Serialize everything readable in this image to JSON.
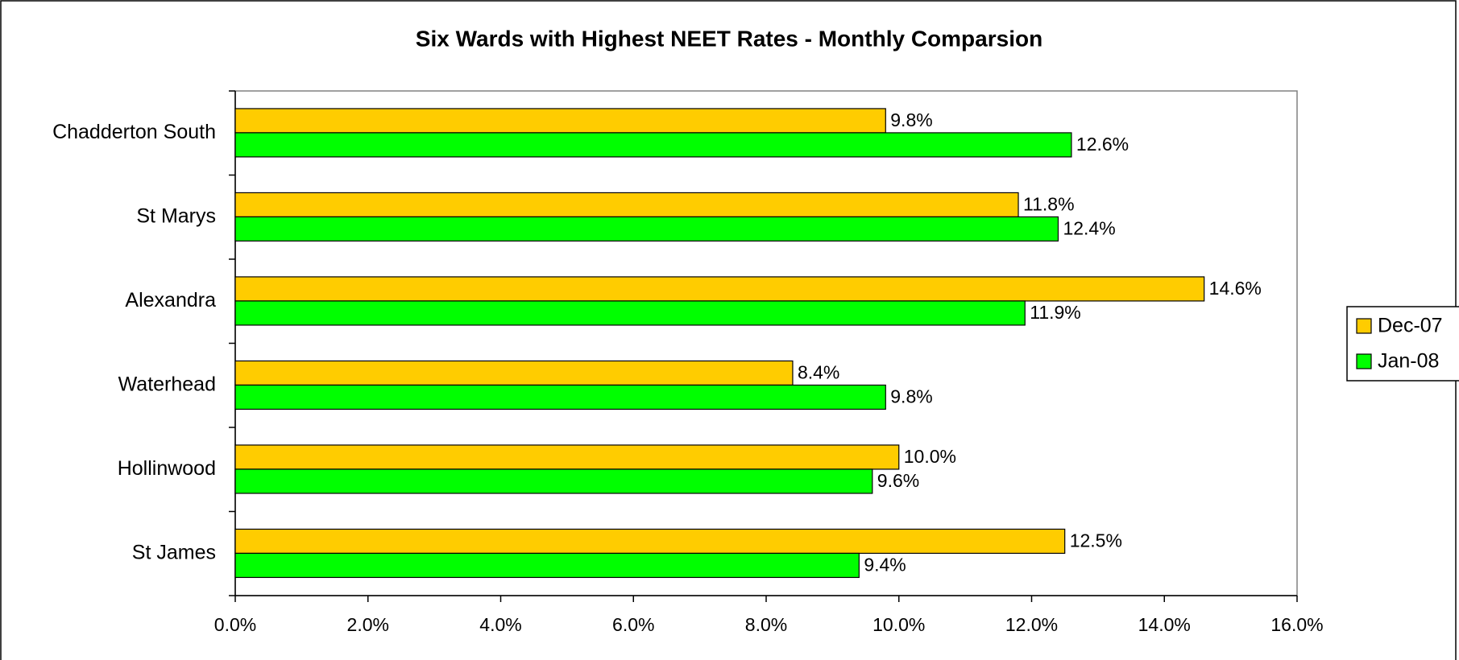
{
  "chart_data": {
    "type": "bar",
    "orientation": "horizontal",
    "title": "Six Wards with Highest NEET Rates - Monthly Comparsion",
    "categories": [
      "Chadderton South",
      "St Marys",
      "Alexandra",
      "Waterhead",
      "Hollinwood",
      "St James"
    ],
    "series": [
      {
        "name": "Dec-07",
        "color": "#ffcc00",
        "values": [
          9.8,
          11.8,
          14.6,
          8.4,
          10.0,
          12.5
        ],
        "value_labels": [
          "9.8%",
          "11.8%",
          "14.6%",
          "8.4%",
          "10.0%",
          "12.5%"
        ]
      },
      {
        "name": "Jan-08",
        "color": "#00ff00",
        "values": [
          12.6,
          12.4,
          11.9,
          9.8,
          9.6,
          9.4
        ],
        "value_labels": [
          "12.6%",
          "12.4%",
          "11.9%",
          "9.8%",
          "9.6%",
          "9.4%"
        ]
      }
    ],
    "xlim": [
      0,
      16
    ],
    "xticks": [
      {
        "value": 0,
        "label": "0.0%"
      },
      {
        "value": 2,
        "label": "2.0%"
      },
      {
        "value": 4,
        "label": "4.0%"
      },
      {
        "value": 6,
        "label": "6.0%"
      },
      {
        "value": 8,
        "label": "8.0%"
      },
      {
        "value": 10,
        "label": "10.0%"
      },
      {
        "value": 12,
        "label": "12.0%"
      },
      {
        "value": 14,
        "label": "14.0%"
      },
      {
        "value": 16,
        "label": "16.0%"
      }
    ],
    "grid": false,
    "legend": "right"
  }
}
